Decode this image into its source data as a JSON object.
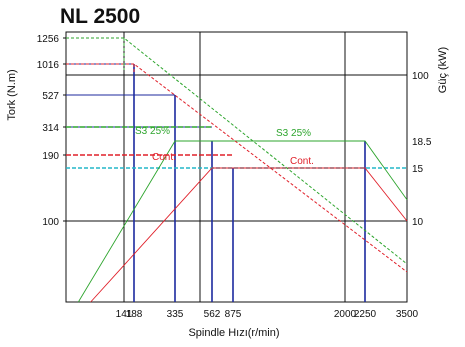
{
  "title": "NL 2500",
  "chart_data": {
    "type": "line",
    "title": "NL 2500",
    "xlabel": "Spindle Hızı(r/min)",
    "ylabel_left": "Tork (N.m)",
    "ylabel_right": "Güç (kW)",
    "x_ticks": [
      141,
      188,
      335,
      562,
      875,
      2000,
      2250,
      3500
    ],
    "x_range": [
      0,
      3500
    ],
    "y_left_ticks": [
      1256,
      1016,
      527,
      314,
      190,
      100
    ],
    "y_right_ticks": [
      100,
      18.5,
      15,
      10
    ],
    "grid": true,
    "colors": {
      "torque_s3": "#2ea52e",
      "torque_cont": "#e0202a",
      "reference": "#1c2a9e",
      "power_15": "#23b7c9"
    },
    "torque_series": [
      {
        "name": "",
        "style": "dashed",
        "color": "green",
        "x": [
          0,
          141,
          3500
        ],
        "y": [
          1256,
          1256,
          50
        ]
      },
      {
        "name": "",
        "style": "dashed",
        "color": "red",
        "x": [
          0,
          188,
          3500
        ],
        "y": [
          1016,
          1016,
          42
        ]
      },
      {
        "name": "",
        "style": "dashed",
        "color": "green",
        "x": [
          0,
          562
        ],
        "y": [
          314,
          314
        ]
      },
      {
        "name": "",
        "style": "dashed",
        "color": "red",
        "x": [
          0,
          875
        ],
        "y": [
          190,
          190
        ]
      }
    ],
    "power_series": [
      {
        "name": "S3 25%",
        "color": "green",
        "x": [
          30,
          335,
          562,
          2250,
          3500
        ],
        "y_kw": [
          0,
          18.5,
          18.5,
          18.5,
          12
        ]
      },
      {
        "name": "Cont.",
        "color": "red",
        "x": [
          60,
          562,
          875,
          2250,
          3500
        ],
        "y_kw": [
          0,
          15,
          15,
          15,
          10
        ]
      }
    ],
    "reference_lines": {
      "torque_from_left": [
        {
          "y": 1016,
          "x_end": 188
        },
        {
          "y": 527,
          "x_end": 335
        },
        {
          "y": 314,
          "x_end": 562
        }
      ],
      "verticals": [
        188,
        335,
        562,
        875,
        2250
      ]
    },
    "power_horizontal": {
      "y_kw": 15,
      "color": "cyan",
      "style": "dashed"
    },
    "annotations": [
      "S3 25%",
      "S3 25%",
      "Cont.",
      "Cont."
    ]
  }
}
